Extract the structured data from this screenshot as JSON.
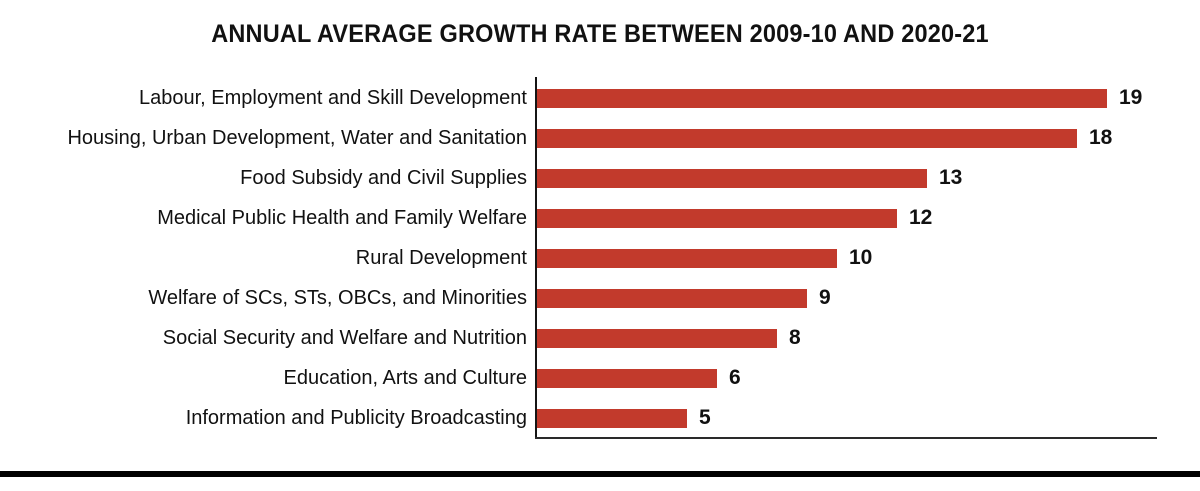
{
  "chart_data": {
    "type": "bar",
    "orientation": "horizontal",
    "title": "ANNUAL AVERAGE GROWTH RATE BETWEEN 2009-10 AND 2020-21",
    "categories": [
      "Labour, Employment and Skill Development",
      "Housing, Urban Development, Water and Sanitation",
      "Food Subsidy and Civil Supplies",
      "Medical Public Health and Family Welfare",
      "Rural Development",
      "Welfare of SCs, STs, OBCs, and Minorities",
      "Social Security and Welfare and Nutrition",
      "Education, Arts and Culture",
      "Information and Publicity Broadcasting"
    ],
    "values": [
      19,
      18,
      13,
      12,
      10,
      9,
      8,
      6,
      5
    ],
    "data_labels": [
      "19",
      "18",
      "13",
      "12",
      "10",
      "9",
      "8",
      "6",
      "5"
    ],
    "xlabel": "",
    "ylabel": "",
    "xlim": [
      0,
      19
    ],
    "grid": "off",
    "legend": "none",
    "bar_color": "#C23A2C",
    "axis_color": "#151515",
    "text_color": "#111111",
    "bottom_rule_color": "#000000"
  }
}
